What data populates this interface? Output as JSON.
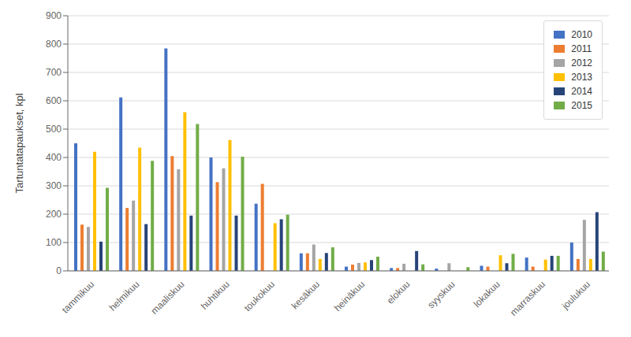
{
  "chart_data": {
    "type": "bar",
    "categories": [
      "tammikuu",
      "helmikuu",
      "maaliskuu",
      "huhtikuu",
      "toukokuu",
      "kesäkuu",
      "heinäkuu",
      "elokuu",
      "syyskuu",
      "lokakuu",
      "marraskuu",
      "joulukuu"
    ],
    "series": [
      {
        "name": "2010",
        "color": "#4472C4",
        "values": [
          450,
          612,
          785,
          400,
          237,
          62,
          15,
          10,
          8,
          18,
          47,
          100
        ]
      },
      {
        "name": "2011",
        "color": "#ED7D31",
        "values": [
          163,
          222,
          405,
          313,
          307,
          62,
          22,
          10,
          0,
          15,
          15,
          42
        ]
      },
      {
        "name": "2012",
        "color": "#A5A5A5",
        "values": [
          155,
          248,
          358,
          362,
          0,
          93,
          28,
          25,
          27,
          0,
          0,
          180
        ]
      },
      {
        "name": "2013",
        "color": "#FFC000",
        "values": [
          420,
          435,
          560,
          462,
          168,
          42,
          30,
          0,
          0,
          55,
          40,
          42
        ]
      },
      {
        "name": "2014",
        "color": "#264478",
        "values": [
          103,
          165,
          195,
          195,
          182,
          63,
          38,
          70,
          0,
          27,
          53,
          207
        ]
      },
      {
        "name": "2015",
        "color": "#70AD47",
        "values": [
          293,
          388,
          518,
          403,
          198,
          83,
          50,
          23,
          13,
          60,
          53,
          68
        ]
      }
    ],
    "ylabel": "Tartuntatapaukset, kpl",
    "ylim": [
      0,
      900
    ],
    "yticks": [
      0,
      100,
      200,
      300,
      400,
      500,
      600,
      700,
      800,
      900
    ],
    "grid": true,
    "legend": "upper right"
  }
}
